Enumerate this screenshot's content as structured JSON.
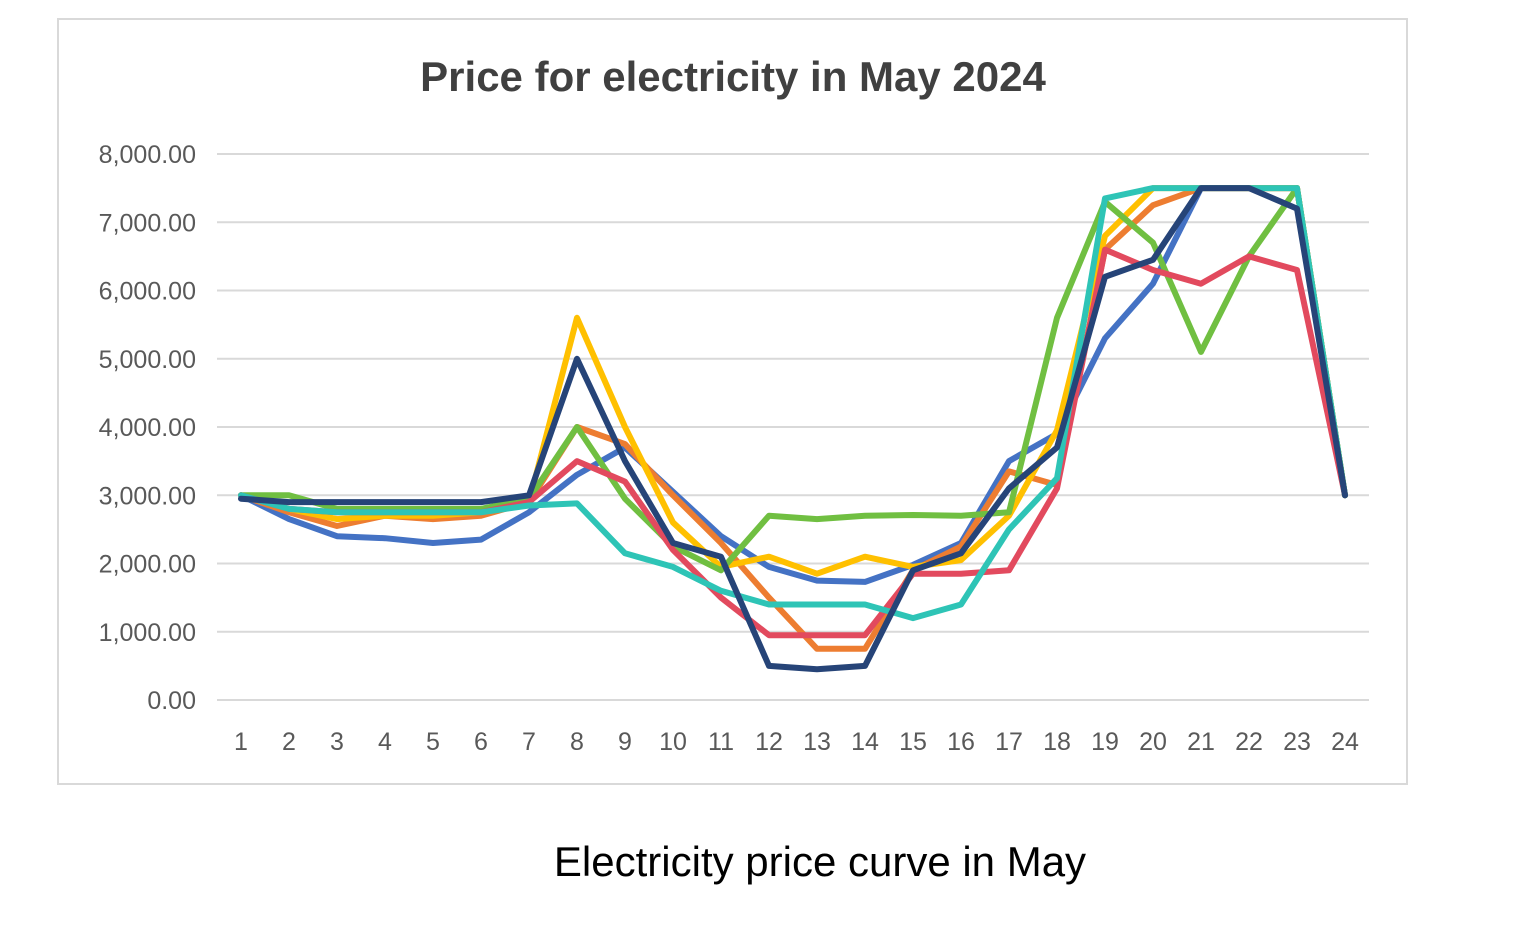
{
  "chart_data": {
    "type": "line",
    "title": "Price for electricity in May 2024",
    "xlabel": "",
    "ylabel": "",
    "categories": [
      "1",
      "2",
      "3",
      "4",
      "5",
      "6",
      "7",
      "8",
      "9",
      "10",
      "11",
      "12",
      "13",
      "14",
      "15",
      "16",
      "17",
      "18",
      "19",
      "20",
      "21",
      "22",
      "23",
      "24"
    ],
    "y_ticks": [
      "0.00",
      "1,000.00",
      "2,000.00",
      "3,000.00",
      "4,000.00",
      "5,000.00",
      "6,000.00",
      "7,000.00",
      "8,000.00"
    ],
    "ylim": [
      0,
      8000
    ],
    "grid": true,
    "legend": "none",
    "series": [
      {
        "color": "#4472C4",
        "values": [
          3000,
          2650,
          2400,
          2370,
          2300,
          2350,
          2750,
          3300,
          3700,
          3050,
          2400,
          1950,
          1750,
          1730,
          1980,
          2300,
          3500,
          3900,
          5300,
          6100,
          7500,
          7500,
          7500,
          3000
        ]
      },
      {
        "color": "#ED7D31",
        "values": [
          3000,
          2750,
          2550,
          2700,
          2650,
          2700,
          2900,
          4000,
          3750,
          3000,
          2300,
          1500,
          750,
          750,
          1900,
          2250,
          3350,
          3150,
          6600,
          7250,
          7500,
          7500,
          7500,
          3000
        ]
      },
      {
        "color": "#FFC000",
        "values": [
          3000,
          2800,
          2650,
          2700,
          2700,
          2750,
          2900,
          5600,
          4000,
          2600,
          1950,
          2100,
          1850,
          2100,
          1950,
          2050,
          2700,
          3950,
          6800,
          7500,
          7500,
          7500,
          7500,
          3000
        ]
      },
      {
        "color": "#70BF41",
        "values": [
          3000,
          3000,
          2800,
          2800,
          2800,
          2800,
          2950,
          4000,
          2950,
          2250,
          1900,
          2700,
          2650,
          2700,
          2710,
          2700,
          2750,
          5600,
          7300,
          6700,
          5100,
          6500,
          7500,
          3000
        ]
      },
      {
        "color": "#E24A5E",
        "values": [
          3000,
          2800,
          2750,
          2750,
          2750,
          2750,
          2900,
          3500,
          3200,
          2200,
          1500,
          950,
          950,
          950,
          1850,
          1850,
          1900,
          3100,
          6600,
          6300,
          6100,
          6500,
          6300,
          3000
        ]
      },
      {
        "color": "#2EC4B6",
        "values": [
          3000,
          2800,
          2750,
          2750,
          2750,
          2750,
          2850,
          2880,
          2150,
          1950,
          1600,
          1400,
          1400,
          1400,
          1200,
          1400,
          2500,
          3250,
          7350,
          7500,
          7500,
          7500,
          7500,
          3000
        ]
      },
      {
        "color": "#264478",
        "values": [
          2950,
          2900,
          2900,
          2900,
          2900,
          2900,
          3000,
          5000,
          3500,
          2300,
          2100,
          500,
          450,
          500,
          1900,
          2150,
          3100,
          3700,
          6200,
          6450,
          7500,
          7500,
          7200,
          3000
        ]
      }
    ]
  },
  "caption": "Electricity price curve in May"
}
